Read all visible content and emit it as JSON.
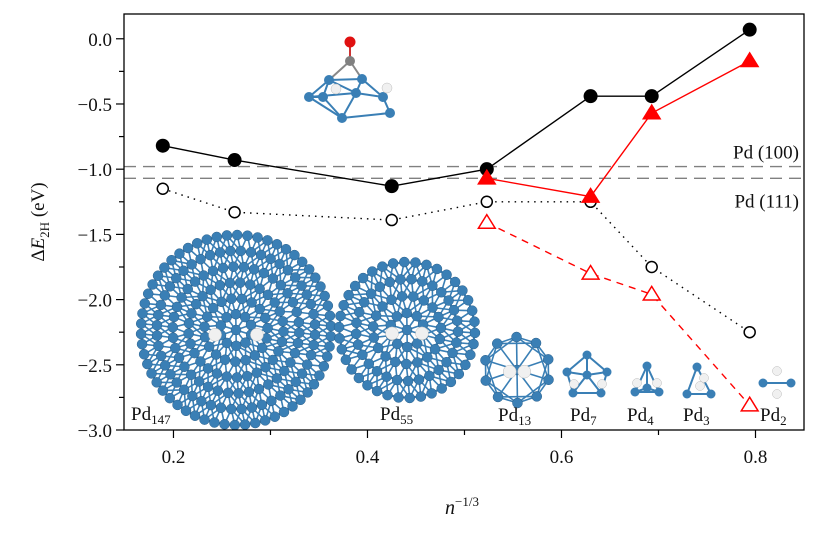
{
  "chart_data": {
    "type": "line",
    "title": "",
    "xlabel": "n",
    "xlabel_sup": "−1/3",
    "ylabel_prefix": "Δ",
    "ylabel_var": "E",
    "ylabel_sub": "2H",
    "ylabel_suffix": " (eV)",
    "xlim": [
      0.149,
      0.85
    ],
    "ylim": [
      -3.0,
      0.19
    ],
    "x_ticks": [
      0.2,
      0.4,
      0.6,
      0.8
    ],
    "x_tick_labels": [
      "0.2",
      "0.4",
      "0.6",
      "0.8"
    ],
    "x_minor_ticks": [
      0.3,
      0.5,
      0.7
    ],
    "y_ticks": [
      0.0,
      -0.5,
      -1.0,
      -1.5,
      -2.0,
      -2.5,
      -3.0
    ],
    "y_tick_labels": [
      "0.0",
      "−0.5",
      "−1.0",
      "−1.5",
      "−2.0",
      "−2.5",
      "−3.0"
    ],
    "y_minor_ticks": [
      -0.25,
      -0.75,
      -1.25,
      -1.75,
      -2.25,
      -2.75
    ],
    "grid": false,
    "series": [
      {
        "name": "black-filled-circles",
        "marker": "circle-filled",
        "color": "#000000",
        "line": "solid",
        "x": [
          0.189,
          0.263,
          0.425,
          0.523,
          0.63,
          0.693,
          0.794
        ],
        "y": [
          -0.82,
          -0.93,
          -1.13,
          -1.0,
          -0.44,
          -0.44,
          0.07
        ]
      },
      {
        "name": "black-open-circles",
        "marker": "circle-open",
        "color": "#000000",
        "line": "dotted",
        "x": [
          0.189,
          0.263,
          0.425,
          0.523,
          0.63,
          0.693,
          0.794
        ],
        "y": [
          -1.15,
          -1.33,
          -1.39,
          -1.25,
          -1.25,
          -1.75,
          -2.25
        ]
      },
      {
        "name": "red-filled-triangles",
        "marker": "triangle-filled",
        "color": "#ff0000",
        "line": "solid",
        "x": [
          0.523,
          0.63,
          0.693,
          0.794
        ],
        "y": [
          -1.07,
          -1.21,
          -0.57,
          -0.17
        ]
      },
      {
        "name": "red-open-triangles",
        "marker": "triangle-open",
        "color": "#ff0000",
        "line": "dashed",
        "x": [
          0.523,
          0.63,
          0.693,
          0.794
        ],
        "y": [
          -1.41,
          -1.8,
          -1.96,
          -2.81
        ]
      }
    ],
    "reference_lines": [
      {
        "label": "Pd (100)",
        "y": -0.98,
        "color": "#808080"
      },
      {
        "label": "Pd (111)",
        "y": -1.07,
        "color": "#808080"
      }
    ],
    "annotations": [
      {
        "base": "Pd",
        "sub": "147"
      },
      {
        "base": "Pd",
        "sub": "55"
      },
      {
        "base": "Pd",
        "sub": "13"
      },
      {
        "base": "Pd",
        "sub": "7"
      },
      {
        "base": "Pd",
        "sub": "4"
      },
      {
        "base": "Pd",
        "sub": "3"
      },
      {
        "base": "Pd",
        "sub": "2"
      }
    ],
    "colors": {
      "atom_pd": "#3a7fb5",
      "atom_h": "#f0f0f0",
      "atom_o": "#e01010",
      "atom_c": "#808080"
    }
  }
}
